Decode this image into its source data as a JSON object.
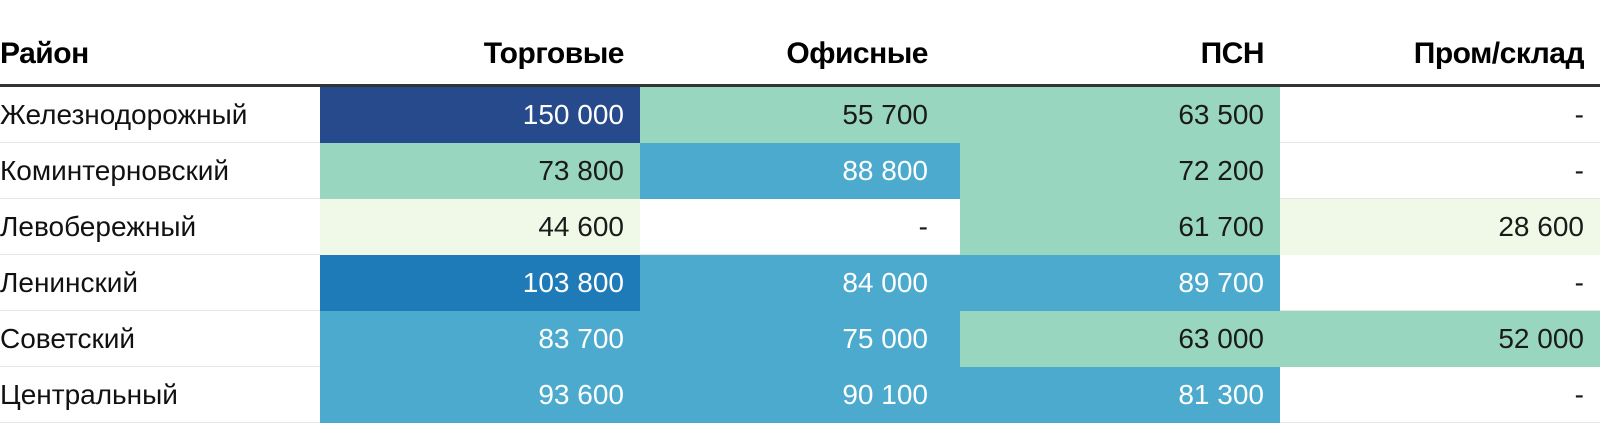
{
  "chart_data": {
    "type": "table",
    "columns": [
      "Район",
      "Торговые",
      "Офисные",
      "ПСН",
      "Пром/склад"
    ],
    "rows": [
      {
        "district": "Железнодорожный",
        "cells": [
          {
            "text": "150 000",
            "value": 150000
          },
          {
            "text": "55 700",
            "value": 55700
          },
          {
            "text": "63 500",
            "value": 63500
          },
          {
            "text": "-",
            "value": null
          }
        ]
      },
      {
        "district": "Коминтерновский",
        "cells": [
          {
            "text": "73 800",
            "value": 73800
          },
          {
            "text": "88 800",
            "value": 88800
          },
          {
            "text": "72 200",
            "value": 72200
          },
          {
            "text": "-",
            "value": null
          }
        ]
      },
      {
        "district": "Левобережный",
        "cells": [
          {
            "text": "44 600",
            "value": 44600
          },
          {
            "text": "-",
            "value": null
          },
          {
            "text": "61 700",
            "value": 61700
          },
          {
            "text": "28 600",
            "value": 28600
          }
        ]
      },
      {
        "district": "Ленинский",
        "cells": [
          {
            "text": "103 800",
            "value": 103800
          },
          {
            "text": "84 000",
            "value": 84000
          },
          {
            "text": "89 700",
            "value": 89700
          },
          {
            "text": "-",
            "value": null
          }
        ]
      },
      {
        "district": "Советский",
        "cells": [
          {
            "text": "83 700",
            "value": 83700
          },
          {
            "text": "75 000",
            "value": 75000
          },
          {
            "text": "63 000",
            "value": 63000
          },
          {
            "text": "52 000",
            "value": 52000
          }
        ]
      },
      {
        "district": "Центральный",
        "cells": [
          {
            "text": "93 600",
            "value": 93600
          },
          {
            "text": "90 100",
            "value": 90100
          },
          {
            "text": "81 300",
            "value": 81300
          },
          {
            "text": "-",
            "value": null
          }
        ]
      }
    ],
    "color_scale": [
      {
        "min": 0,
        "color": "#f0f9e8",
        "text_color": "#1a1a1a"
      },
      {
        "min": 50000,
        "color": "#98d6c0",
        "text_color": "#1a1a1a"
      },
      {
        "min": 75000,
        "color": "#4baacd",
        "text_color": "#ffffff"
      },
      {
        "min": 100000,
        "color": "#1f7ab8",
        "text_color": "#ffffff"
      },
      {
        "min": 125000,
        "color": "#264a8c",
        "text_color": "#ffffff"
      }
    ]
  }
}
